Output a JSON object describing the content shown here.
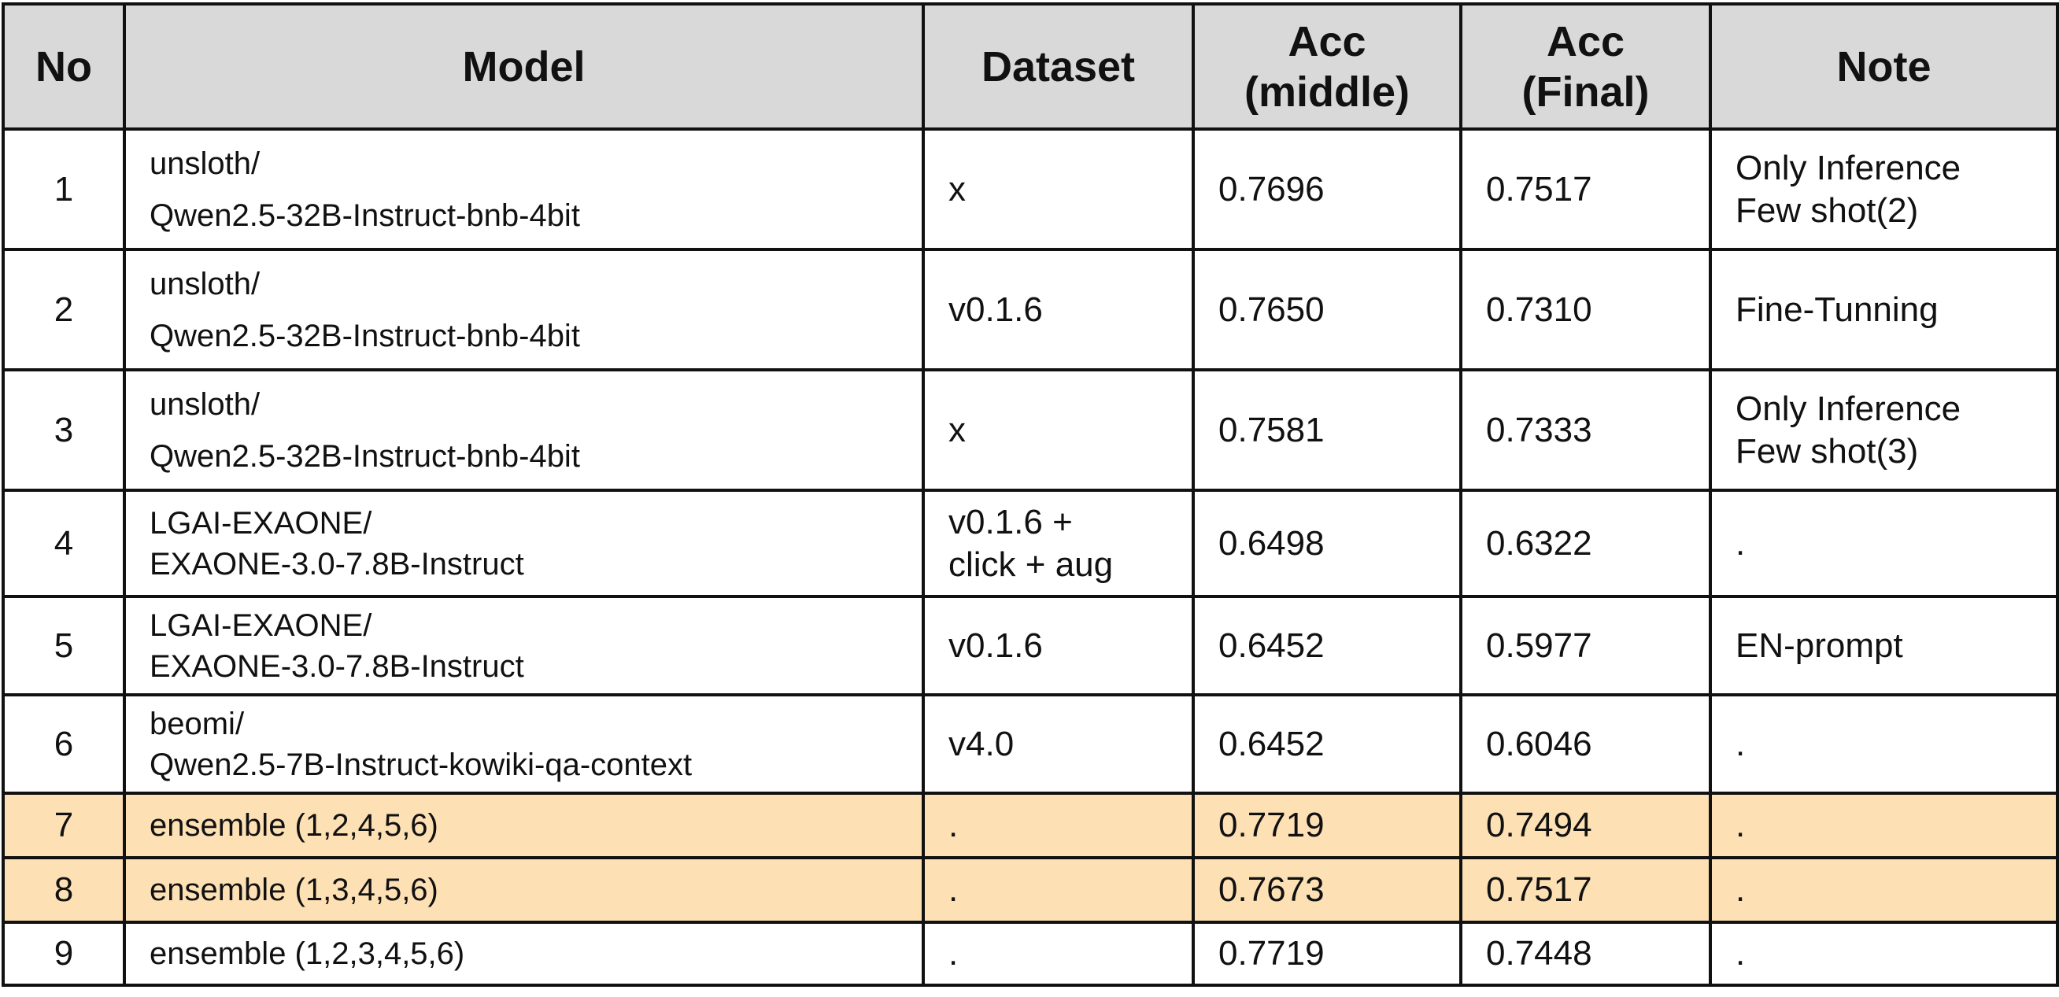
{
  "table": {
    "headers": {
      "no": "No",
      "model": "Model",
      "dataset": "Dataset",
      "acc_middle_1": "Acc",
      "acc_middle_2": "(middle)",
      "acc_final_1": "Acc",
      "acc_final_2": "(Final)",
      "note": "Note"
    },
    "highlight_color": "#fde0b4",
    "header_bg": "#d9d9d9",
    "rows": [
      {
        "no": "1",
        "model_1": "unsloth/",
        "model_2": "Qwen2.5-32B-Instruct-bnb-4bit",
        "dataset_1": "x",
        "dataset_2": "",
        "acc_middle": "0.7696",
        "acc_final": "0.7517",
        "note_1": "Only Inference",
        "note_2": "Few shot(2)",
        "highlighted": false
      },
      {
        "no": "2",
        "model_1": "unsloth/",
        "model_2": "Qwen2.5-32B-Instruct-bnb-4bit",
        "dataset_1": "v0.1.6",
        "dataset_2": "",
        "acc_middle": "0.7650",
        "acc_final": "0.7310",
        "note_1": "Fine-Tunning",
        "note_2": "",
        "highlighted": false
      },
      {
        "no": "3",
        "model_1": "unsloth/",
        "model_2": "Qwen2.5-32B-Instruct-bnb-4bit",
        "dataset_1": "x",
        "dataset_2": "",
        "acc_middle": "0.7581",
        "acc_final": "0.7333",
        "note_1": "Only Inference",
        "note_2": "Few shot(3)",
        "highlighted": false
      },
      {
        "no": "4",
        "model_1": "LGAI-EXAONE/",
        "model_2": "EXAONE-3.0-7.8B-Instruct",
        "dataset_1": "v0.1.6 +",
        "dataset_2": "click + aug",
        "acc_middle": "0.6498",
        "acc_final": "0.6322",
        "note_1": ".",
        "note_2": "",
        "highlighted": false
      },
      {
        "no": "5",
        "model_1": "LGAI-EXAONE/",
        "model_2": "EXAONE-3.0-7.8B-Instruct",
        "dataset_1": "v0.1.6",
        "dataset_2": "",
        "acc_middle": "0.6452",
        "acc_final": "0.5977",
        "note_1": "EN-prompt",
        "note_2": "",
        "highlighted": false
      },
      {
        "no": "6",
        "model_1": "beomi/",
        "model_2": "Qwen2.5-7B-Instruct-kowiki-qa-context",
        "dataset_1": "v4.0",
        "dataset_2": "",
        "acc_middle": "0.6452",
        "acc_final": "0.6046",
        "note_1": ".",
        "note_2": "",
        "highlighted": false
      },
      {
        "no": "7",
        "model_1": "ensemble (1,2,4,5,6)",
        "model_2": "",
        "dataset_1": ".",
        "dataset_2": "",
        "acc_middle": "0.7719",
        "acc_final": "0.7494",
        "note_1": ".",
        "note_2": "",
        "highlighted": true
      },
      {
        "no": "8",
        "model_1": "ensemble (1,3,4,5,6)",
        "model_2": "",
        "dataset_1": ".",
        "dataset_2": "",
        "acc_middle": "0.7673",
        "acc_final": "0.7517",
        "note_1": ".",
        "note_2": "",
        "highlighted": true
      },
      {
        "no": "9",
        "model_1": "ensemble (1,2,3,4,5,6)",
        "model_2": "",
        "dataset_1": ".",
        "dataset_2": "",
        "acc_middle": "0.7719",
        "acc_final": "0.7448",
        "note_1": ".",
        "note_2": "",
        "highlighted": false
      }
    ]
  }
}
